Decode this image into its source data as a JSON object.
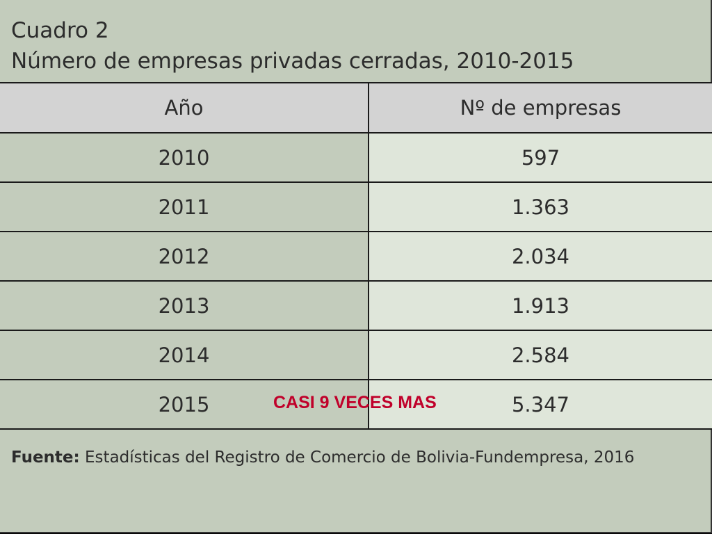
{
  "title": {
    "line1": "Cuadro 2",
    "line2": "Número de empresas privadas cerradas, 2010-2015"
  },
  "table": {
    "headers": [
      "Año",
      "Nº de empresas"
    ],
    "rows": [
      {
        "year": "2010",
        "count": "597"
      },
      {
        "year": "2011",
        "count": "1.363"
      },
      {
        "year": "2012",
        "count": "2.034"
      },
      {
        "year": "2013",
        "count": "1.913"
      },
      {
        "year": "2014",
        "count": "2.584"
      },
      {
        "year": "2015",
        "count": "5.347"
      }
    ]
  },
  "annotation": "CASI 9 VECES MAS",
  "source": {
    "label": "Fuente:",
    "text": " Estadísticas del Registro de Comercio de Bolivia-Fundempresa, 2016"
  },
  "colors": {
    "panel": "#c3ccbc",
    "header": "#d3d3d3",
    "value_cell": "#dfe6da",
    "annotation": "#c0002a"
  }
}
